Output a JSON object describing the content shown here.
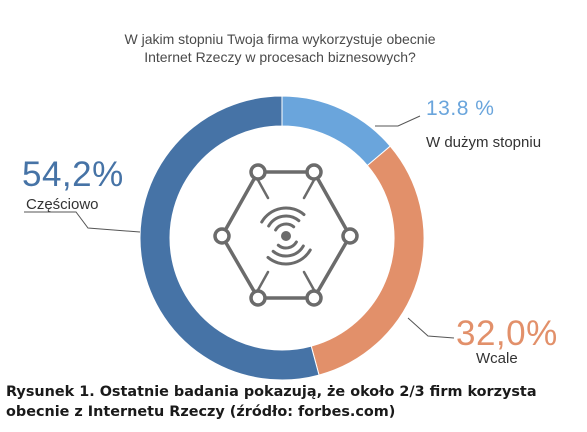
{
  "chart_data": {
    "type": "pie",
    "title_lines": [
      "W jakim stopniu Twoja firma wykorzystuje obecnie",
      "Internet Rzeczy w procesach biznesowych?"
    ],
    "categories": [
      "W dużym stopniu",
      "Wcale",
      "Częściowo"
    ],
    "values": [
      13.8,
      32.0,
      54.2
    ],
    "value_labels": [
      "13.8 %",
      "32,0%",
      "54,2%"
    ],
    "colors": [
      "#6aa5dc",
      "#e2906a",
      "#4673a6"
    ],
    "donut": true,
    "center_icon": "iot-network-hexagon-icon"
  },
  "caption": {
    "line1": "Rysunek 1. Ostatnie badania pokazują, że około 2/3 firm korzysta",
    "line2": "obecnie z Internetu Rzeczy (źródło: forbes.com)"
  },
  "leader_color": "#555555",
  "icon_color": "#6b6b6b"
}
